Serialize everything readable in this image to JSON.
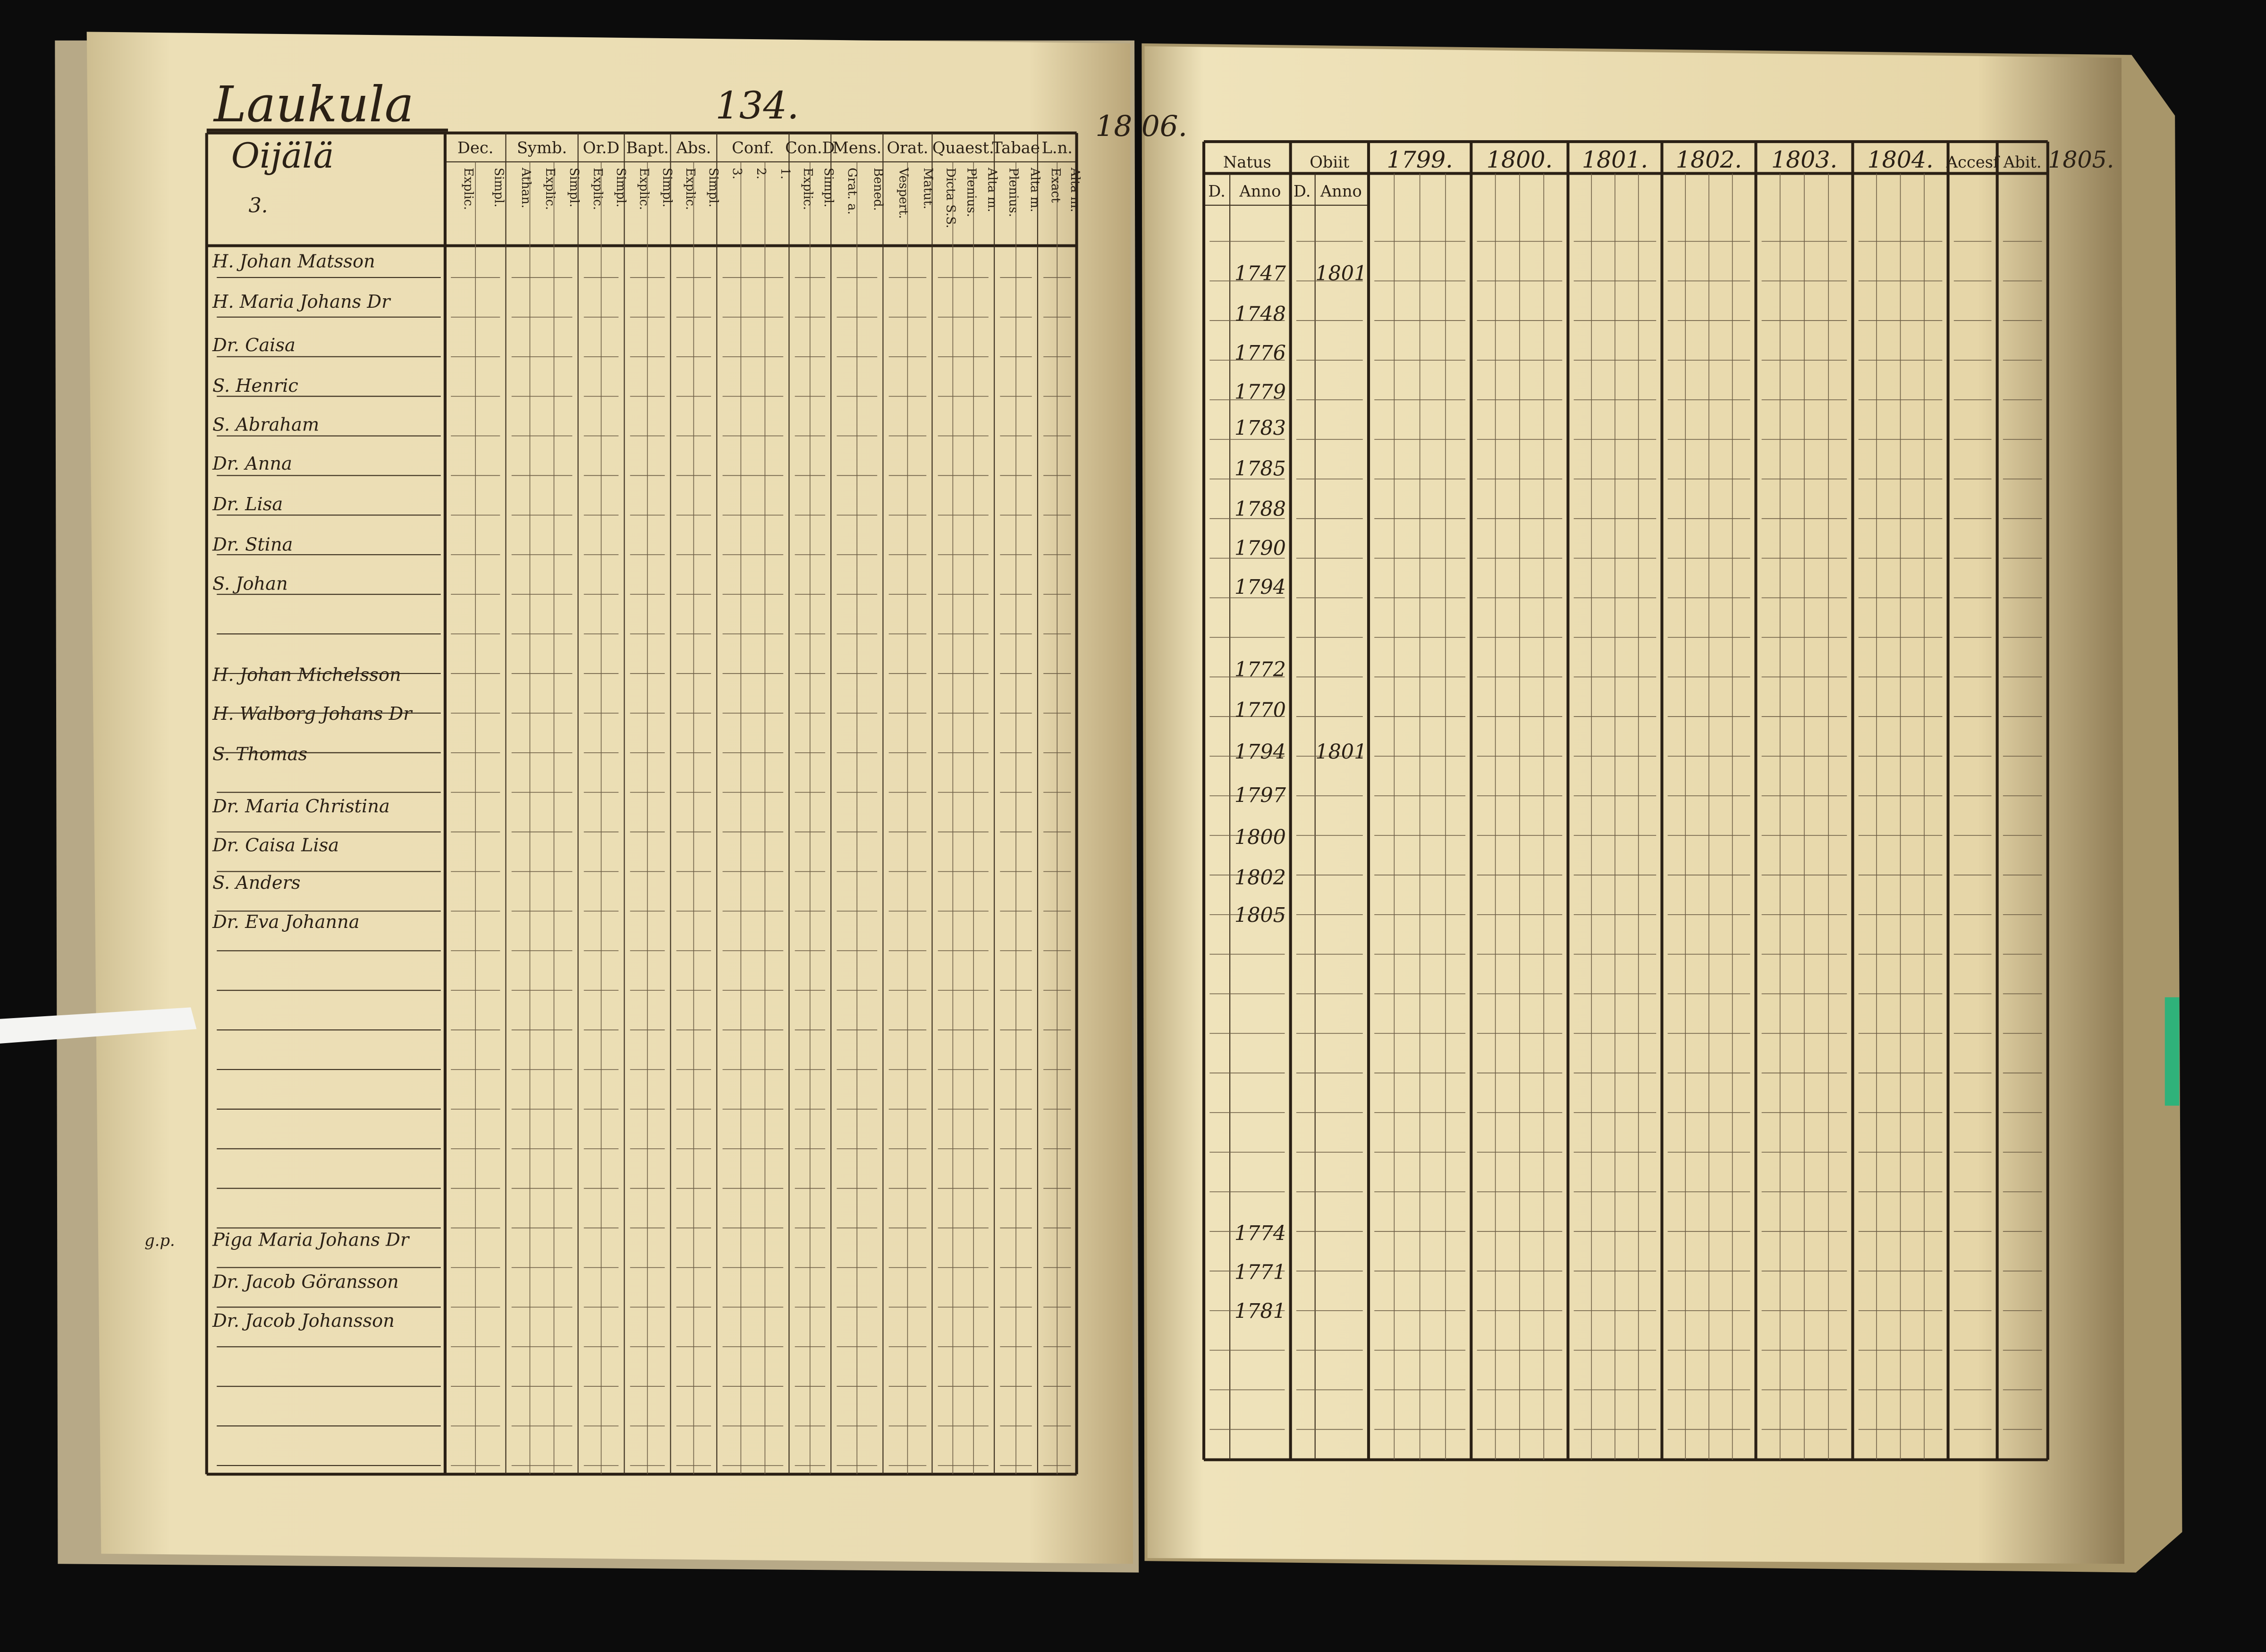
{
  "header": {
    "title": "Laukula",
    "household": "Oijälä",
    "household_number": "3.",
    "page_number": "134.",
    "year_note": "18 06."
  },
  "left_table": {
    "headers": [
      {
        "label": "Dec.",
        "sub": [
          "Explic.",
          "Simpl."
        ]
      },
      {
        "label": "Symb.",
        "sub": [
          "Athan.",
          "Explic.",
          "Simpl."
        ]
      },
      {
        "label": "Or.D",
        "sub": [
          "Explic.",
          "Simpl."
        ]
      },
      {
        "label": "Bapt.",
        "sub": [
          "Explic.",
          "Simpl."
        ]
      },
      {
        "label": "Abs.",
        "sub": [
          "Explic.",
          "Simpl."
        ]
      },
      {
        "label": "Conf.",
        "sub": [
          "3.",
          "2.",
          "1."
        ]
      },
      {
        "label": "Con.D",
        "sub": [
          "Explic.",
          "Simpl."
        ]
      },
      {
        "label": "Mens.",
        "sub": [
          "Grat. a.",
          "Bened."
        ]
      },
      {
        "label": "Orat.",
        "sub": [
          "Vespert.",
          "Matut."
        ]
      },
      {
        "label": "Quaest.",
        "sub": [
          "Dicta S.S.",
          "Plenius.",
          "Alta m."
        ]
      },
      {
        "label": "Tabae",
        "sub": [
          "Plenius.",
          "Alta m."
        ]
      },
      {
        "label": "L.n.",
        "sub": [
          "Exact",
          "Alta m."
        ]
      }
    ],
    "rows": [
      {
        "name": "H. Johan Matsson"
      },
      {
        "name": "H. Maria Johans Dr"
      },
      {
        "name": "Dr. Caisa"
      },
      {
        "name": "S. Henric"
      },
      {
        "name": "S. Abraham"
      },
      {
        "name": "Dr. Anna"
      },
      {
        "name": "Dr. Lisa"
      },
      {
        "name": "Dr. Stina"
      },
      {
        "name": "S. Johan"
      },
      {
        "name": "H. Johan Michelsson"
      },
      {
        "name": "H. Walborg Johans Dr"
      },
      {
        "name": "S. Thomas"
      },
      {
        "name": "Dr. Maria Christina"
      },
      {
        "name": "Dr. Caisa Lisa"
      },
      {
        "name": "S. Anders"
      },
      {
        "name": "Dr. Eva Johanna"
      },
      {
        "name": "Piga Maria Johans Dr",
        "prefix": "g.p."
      },
      {
        "name": "Dr. Jacob Göransson"
      },
      {
        "name": "Dr. Jacob Johansson"
      }
    ]
  },
  "right_table": {
    "headers": [
      "Natus",
      "Obiit",
      "1799.",
      "1800.",
      "1801.",
      "1802.",
      "1803.",
      "1804.",
      "Accesf",
      "Abit.",
      "1805."
    ],
    "sub_headers": [
      "D.",
      "Anno",
      "D.",
      "Anno"
    ],
    "rows": [
      {
        "born": "1747",
        "died": "1801"
      },
      {
        "born": "1748"
      },
      {
        "born": "1776"
      },
      {
        "born": "1779"
      },
      {
        "born": "1783"
      },
      {
        "born": "1785"
      },
      {
        "born": "1788"
      },
      {
        "born": "1790"
      },
      {
        "born": "1794"
      },
      {
        "born": "1772"
      },
      {
        "born": "1770"
      },
      {
        "born": "1794",
        "died": "1801"
      },
      {
        "born": "1797"
      },
      {
        "born": "1800"
      },
      {
        "born": "1802"
      },
      {
        "born": "1805"
      },
      {
        "born": "1774"
      },
      {
        "born": "1771"
      },
      {
        "born": "1781"
      }
    ]
  }
}
